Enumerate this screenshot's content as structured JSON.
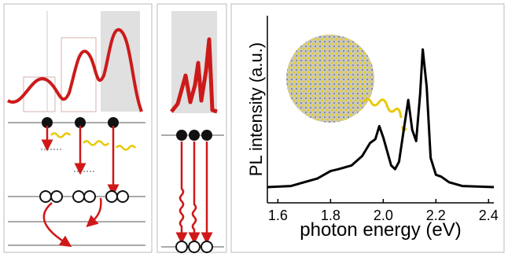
{
  "chart_data": {
    "type": "line",
    "xlabel": "photon energy (eV)",
    "ylabel": "PL intensity (a.u.)",
    "xlim": [
      1.56,
      2.42
    ],
    "ylim": [
      0,
      1
    ],
    "xticks": [
      1.6,
      1.8,
      {
        "value": 2.0,
        "label": "2.0"
      },
      2.2,
      2.4
    ],
    "series": [
      {
        "color": "#000000",
        "x": [
          1.56,
          1.65,
          1.75,
          1.8,
          1.83,
          1.88,
          1.92,
          1.95,
          1.97,
          1.985,
          2.0,
          2.03,
          2.045,
          2.06,
          2.08,
          2.095,
          2.11,
          2.125,
          2.14,
          2.15,
          2.165,
          2.18,
          2.2,
          2.22,
          2.25,
          2.3,
          2.42
        ],
        "values": [
          0.084,
          0.09,
          0.13,
          0.17,
          0.18,
          0.2,
          0.25,
          0.32,
          0.34,
          0.41,
          0.35,
          0.2,
          0.18,
          0.22,
          0.41,
          0.55,
          0.39,
          0.33,
          0.58,
          0.82,
          0.62,
          0.24,
          0.15,
          0.14,
          0.11,
          0.09,
          0.084
        ]
      }
    ]
  }
}
